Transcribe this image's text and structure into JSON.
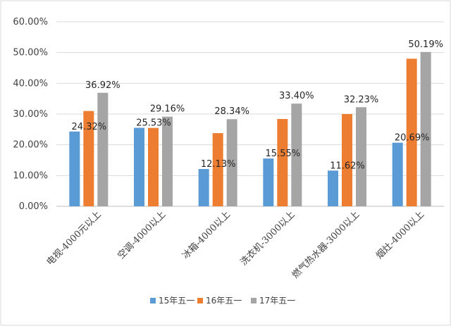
{
  "chart_data": {
    "type": "bar",
    "title": "",
    "xlabel": "",
    "ylabel": "",
    "ylim": [
      0,
      0.6
    ],
    "y_ticks": [
      0,
      0.1,
      0.2,
      0.3,
      0.4,
      0.5,
      0.6
    ],
    "y_tick_labels": [
      "0.00%",
      "10.00%",
      "20.00%",
      "30.00%",
      "40.00%",
      "50.00%",
      "60.00%"
    ],
    "grid": true,
    "legend_position": "bottom",
    "categories": [
      "电视-4000元以上",
      "空调-4000以上",
      "冰箱-4000以上",
      "洗衣机-3000以上",
      "燃气热水器-3000以上",
      "烟灶-4000以上"
    ],
    "series": [
      {
        "name": "15年五一",
        "color": "#5B9BD5",
        "values": [
          0.2432,
          0.2553,
          0.1213,
          0.1555,
          0.1162,
          0.2069
        ],
        "labels": [
          "24.32%",
          "25.53%",
          "12.13%",
          "15.55%",
          "11.62%",
          "20.69%"
        ]
      },
      {
        "name": "16年五一",
        "color": "#ED7D31",
        "values": [
          0.31,
          0.255,
          0.238,
          0.284,
          0.3,
          0.48
        ],
        "labels": [
          null,
          null,
          null,
          null,
          null,
          null
        ]
      },
      {
        "name": "17年五一",
        "color": "#A5A5A5",
        "values": [
          0.3692,
          0.2916,
          0.2834,
          0.334,
          0.3223,
          0.5019
        ],
        "labels": [
          "36.92%",
          "29.16%",
          "28.34%",
          "33.40%",
          "32.23%",
          "50.19%"
        ]
      }
    ]
  }
}
